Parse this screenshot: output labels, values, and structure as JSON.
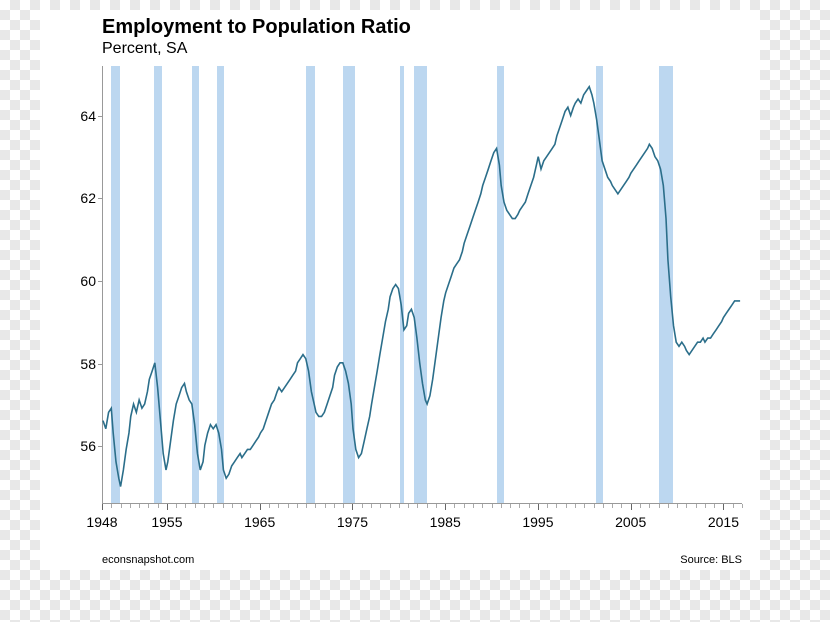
{
  "chart": {
    "type": "line",
    "title": "Employment to Population Ratio",
    "subtitle": "Percent, SA",
    "title_fontsize": 20,
    "subtitle_fontsize": 16,
    "line_color": "#2b6e8a",
    "line_width": 1.6,
    "recession_color": "#bcd7f0",
    "background_color": "#ffffff",
    "axis_color": "#999999",
    "tick_fontsize": 14,
    "credit_fontsize": 11,
    "credit_left": "econsnapshot.com",
    "credit_right": "Source: BLS",
    "y": {
      "min": 54.6,
      "max": 65.2,
      "ticks": [
        56,
        58,
        60,
        62,
        64
      ]
    },
    "x": {
      "min": 1948,
      "max": 2017,
      "major_ticks": [
        1948,
        1955,
        1965,
        1975,
        1985,
        1995,
        2005,
        2015
      ],
      "minor_step": 1
    },
    "recessions": [
      [
        1948.9,
        1949.8
      ],
      [
        1953.5,
        1954.4
      ],
      [
        1957.6,
        1958.3
      ],
      [
        1960.3,
        1961.1
      ],
      [
        1969.9,
        1970.9
      ],
      [
        1973.9,
        1975.2
      ],
      [
        1980.0,
        1980.5
      ],
      [
        1981.5,
        1982.9
      ],
      [
        1990.5,
        1991.2
      ],
      [
        2001.2,
        2001.9
      ],
      [
        2007.9,
        2009.5
      ]
    ],
    "series": [
      [
        1948.0,
        56.6
      ],
      [
        1948.3,
        56.4
      ],
      [
        1948.6,
        56.8
      ],
      [
        1948.9,
        56.9
      ],
      [
        1949.1,
        56.3
      ],
      [
        1949.4,
        55.6
      ],
      [
        1949.7,
        55.2
      ],
      [
        1949.9,
        55.0
      ],
      [
        1950.2,
        55.4
      ],
      [
        1950.5,
        55.9
      ],
      [
        1950.8,
        56.3
      ],
      [
        1951.0,
        56.7
      ],
      [
        1951.3,
        57.0
      ],
      [
        1951.6,
        56.8
      ],
      [
        1951.9,
        57.1
      ],
      [
        1952.2,
        56.9
      ],
      [
        1952.5,
        57.0
      ],
      [
        1952.8,
        57.3
      ],
      [
        1953.0,
        57.6
      ],
      [
        1953.3,
        57.8
      ],
      [
        1953.6,
        58.0
      ],
      [
        1953.9,
        57.4
      ],
      [
        1954.2,
        56.6
      ],
      [
        1954.5,
        55.8
      ],
      [
        1954.8,
        55.4
      ],
      [
        1955.0,
        55.6
      ],
      [
        1955.3,
        56.1
      ],
      [
        1955.6,
        56.6
      ],
      [
        1955.9,
        57.0
      ],
      [
        1956.2,
        57.2
      ],
      [
        1956.5,
        57.4
      ],
      [
        1956.8,
        57.5
      ],
      [
        1957.0,
        57.3
      ],
      [
        1957.3,
        57.1
      ],
      [
        1957.6,
        57.0
      ],
      [
        1957.9,
        56.5
      ],
      [
        1958.2,
        55.8
      ],
      [
        1958.5,
        55.4
      ],
      [
        1958.8,
        55.6
      ],
      [
        1959.0,
        56.0
      ],
      [
        1959.3,
        56.3
      ],
      [
        1959.6,
        56.5
      ],
      [
        1959.9,
        56.4
      ],
      [
        1960.2,
        56.5
      ],
      [
        1960.5,
        56.3
      ],
      [
        1960.8,
        55.9
      ],
      [
        1961.0,
        55.4
      ],
      [
        1961.3,
        55.2
      ],
      [
        1961.6,
        55.3
      ],
      [
        1961.9,
        55.5
      ],
      [
        1962.2,
        55.6
      ],
      [
        1962.5,
        55.7
      ],
      [
        1962.8,
        55.8
      ],
      [
        1963.0,
        55.7
      ],
      [
        1963.3,
        55.8
      ],
      [
        1963.6,
        55.9
      ],
      [
        1963.9,
        55.9
      ],
      [
        1964.2,
        56.0
      ],
      [
        1964.5,
        56.1
      ],
      [
        1964.8,
        56.2
      ],
      [
        1965.0,
        56.3
      ],
      [
        1965.3,
        56.4
      ],
      [
        1965.6,
        56.6
      ],
      [
        1965.9,
        56.8
      ],
      [
        1966.2,
        57.0
      ],
      [
        1966.5,
        57.1
      ],
      [
        1966.8,
        57.3
      ],
      [
        1967.0,
        57.4
      ],
      [
        1967.3,
        57.3
      ],
      [
        1967.6,
        57.4
      ],
      [
        1967.9,
        57.5
      ],
      [
        1968.2,
        57.6
      ],
      [
        1968.5,
        57.7
      ],
      [
        1968.8,
        57.8
      ],
      [
        1969.0,
        58.0
      ],
      [
        1969.3,
        58.1
      ],
      [
        1969.6,
        58.2
      ],
      [
        1969.9,
        58.1
      ],
      [
        1970.2,
        57.8
      ],
      [
        1970.5,
        57.3
      ],
      [
        1970.8,
        57.0
      ],
      [
        1971.0,
        56.8
      ],
      [
        1971.3,
        56.7
      ],
      [
        1971.6,
        56.7
      ],
      [
        1971.9,
        56.8
      ],
      [
        1972.2,
        57.0
      ],
      [
        1972.5,
        57.2
      ],
      [
        1972.8,
        57.4
      ],
      [
        1973.0,
        57.7
      ],
      [
        1973.3,
        57.9
      ],
      [
        1973.6,
        58.0
      ],
      [
        1973.9,
        58.0
      ],
      [
        1974.2,
        57.8
      ],
      [
        1974.5,
        57.5
      ],
      [
        1974.8,
        57.0
      ],
      [
        1975.0,
        56.4
      ],
      [
        1975.3,
        55.9
      ],
      [
        1975.6,
        55.7
      ],
      [
        1975.9,
        55.8
      ],
      [
        1976.2,
        56.1
      ],
      [
        1976.5,
        56.4
      ],
      [
        1976.8,
        56.7
      ],
      [
        1977.0,
        57.0
      ],
      [
        1977.3,
        57.4
      ],
      [
        1977.6,
        57.8
      ],
      [
        1977.9,
        58.2
      ],
      [
        1978.2,
        58.6
      ],
      [
        1978.5,
        59.0
      ],
      [
        1978.8,
        59.3
      ],
      [
        1979.0,
        59.6
      ],
      [
        1979.3,
        59.8
      ],
      [
        1979.6,
        59.9
      ],
      [
        1979.9,
        59.8
      ],
      [
        1980.2,
        59.4
      ],
      [
        1980.5,
        58.8
      ],
      [
        1980.8,
        58.9
      ],
      [
        1981.0,
        59.2
      ],
      [
        1981.3,
        59.3
      ],
      [
        1981.6,
        59.1
      ],
      [
        1981.9,
        58.6
      ],
      [
        1982.2,
        58.0
      ],
      [
        1982.5,
        57.5
      ],
      [
        1982.8,
        57.1
      ],
      [
        1983.0,
        57.0
      ],
      [
        1983.3,
        57.2
      ],
      [
        1983.6,
        57.6
      ],
      [
        1983.9,
        58.1
      ],
      [
        1984.2,
        58.6
      ],
      [
        1984.5,
        59.1
      ],
      [
        1984.8,
        59.5
      ],
      [
        1985.0,
        59.7
      ],
      [
        1985.3,
        59.9
      ],
      [
        1985.6,
        60.1
      ],
      [
        1985.9,
        60.3
      ],
      [
        1986.2,
        60.4
      ],
      [
        1986.5,
        60.5
      ],
      [
        1986.8,
        60.7
      ],
      [
        1987.0,
        60.9
      ],
      [
        1987.3,
        61.1
      ],
      [
        1987.6,
        61.3
      ],
      [
        1987.9,
        61.5
      ],
      [
        1988.2,
        61.7
      ],
      [
        1988.5,
        61.9
      ],
      [
        1988.8,
        62.1
      ],
      [
        1989.0,
        62.3
      ],
      [
        1989.3,
        62.5
      ],
      [
        1989.6,
        62.7
      ],
      [
        1989.9,
        62.9
      ],
      [
        1990.2,
        63.1
      ],
      [
        1990.5,
        63.2
      ],
      [
        1990.8,
        62.8
      ],
      [
        1991.0,
        62.3
      ],
      [
        1991.3,
        61.9
      ],
      [
        1991.6,
        61.7
      ],
      [
        1991.9,
        61.6
      ],
      [
        1992.2,
        61.5
      ],
      [
        1992.5,
        61.5
      ],
      [
        1992.8,
        61.6
      ],
      [
        1993.0,
        61.7
      ],
      [
        1993.3,
        61.8
      ],
      [
        1993.6,
        61.9
      ],
      [
        1993.9,
        62.1
      ],
      [
        1994.2,
        62.3
      ],
      [
        1994.5,
        62.5
      ],
      [
        1994.8,
        62.8
      ],
      [
        1995.0,
        63.0
      ],
      [
        1995.3,
        62.7
      ],
      [
        1995.6,
        62.9
      ],
      [
        1995.9,
        63.0
      ],
      [
        1996.2,
        63.1
      ],
      [
        1996.5,
        63.2
      ],
      [
        1996.8,
        63.3
      ],
      [
        1997.0,
        63.5
      ],
      [
        1997.3,
        63.7
      ],
      [
        1997.6,
        63.9
      ],
      [
        1997.9,
        64.1
      ],
      [
        1998.2,
        64.2
      ],
      [
        1998.5,
        64.0
      ],
      [
        1998.8,
        64.2
      ],
      [
        1999.0,
        64.3
      ],
      [
        1999.3,
        64.4
      ],
      [
        1999.6,
        64.3
      ],
      [
        1999.9,
        64.5
      ],
      [
        2000.2,
        64.6
      ],
      [
        2000.5,
        64.7
      ],
      [
        2000.8,
        64.5
      ],
      [
        2001.0,
        64.3
      ],
      [
        2001.3,
        63.9
      ],
      [
        2001.6,
        63.4
      ],
      [
        2001.9,
        62.9
      ],
      [
        2002.2,
        62.7
      ],
      [
        2002.5,
        62.5
      ],
      [
        2002.8,
        62.4
      ],
      [
        2003.0,
        62.3
      ],
      [
        2003.3,
        62.2
      ],
      [
        2003.6,
        62.1
      ],
      [
        2003.9,
        62.2
      ],
      [
        2004.2,
        62.3
      ],
      [
        2004.5,
        62.4
      ],
      [
        2004.8,
        62.5
      ],
      [
        2005.0,
        62.6
      ],
      [
        2005.3,
        62.7
      ],
      [
        2005.6,
        62.8
      ],
      [
        2005.9,
        62.9
      ],
      [
        2006.2,
        63.0
      ],
      [
        2006.5,
        63.1
      ],
      [
        2006.8,
        63.2
      ],
      [
        2007.0,
        63.3
      ],
      [
        2007.3,
        63.2
      ],
      [
        2007.6,
        63.0
      ],
      [
        2007.9,
        62.9
      ],
      [
        2008.2,
        62.7
      ],
      [
        2008.5,
        62.3
      ],
      [
        2008.8,
        61.5
      ],
      [
        2009.0,
        60.5
      ],
      [
        2009.3,
        59.6
      ],
      [
        2009.6,
        58.9
      ],
      [
        2009.9,
        58.5
      ],
      [
        2010.2,
        58.4
      ],
      [
        2010.5,
        58.5
      ],
      [
        2010.8,
        58.4
      ],
      [
        2011.0,
        58.3
      ],
      [
        2011.3,
        58.2
      ],
      [
        2011.6,
        58.3
      ],
      [
        2011.9,
        58.4
      ],
      [
        2012.2,
        58.5
      ],
      [
        2012.5,
        58.5
      ],
      [
        2012.8,
        58.6
      ],
      [
        2013.0,
        58.5
      ],
      [
        2013.3,
        58.6
      ],
      [
        2013.6,
        58.6
      ],
      [
        2013.9,
        58.7
      ],
      [
        2014.2,
        58.8
      ],
      [
        2014.5,
        58.9
      ],
      [
        2014.8,
        59.0
      ],
      [
        2015.0,
        59.1
      ],
      [
        2015.3,
        59.2
      ],
      [
        2015.6,
        59.3
      ],
      [
        2015.9,
        59.4
      ],
      [
        2016.2,
        59.5
      ],
      [
        2016.5,
        59.5
      ],
      [
        2016.8,
        59.5
      ]
    ]
  }
}
